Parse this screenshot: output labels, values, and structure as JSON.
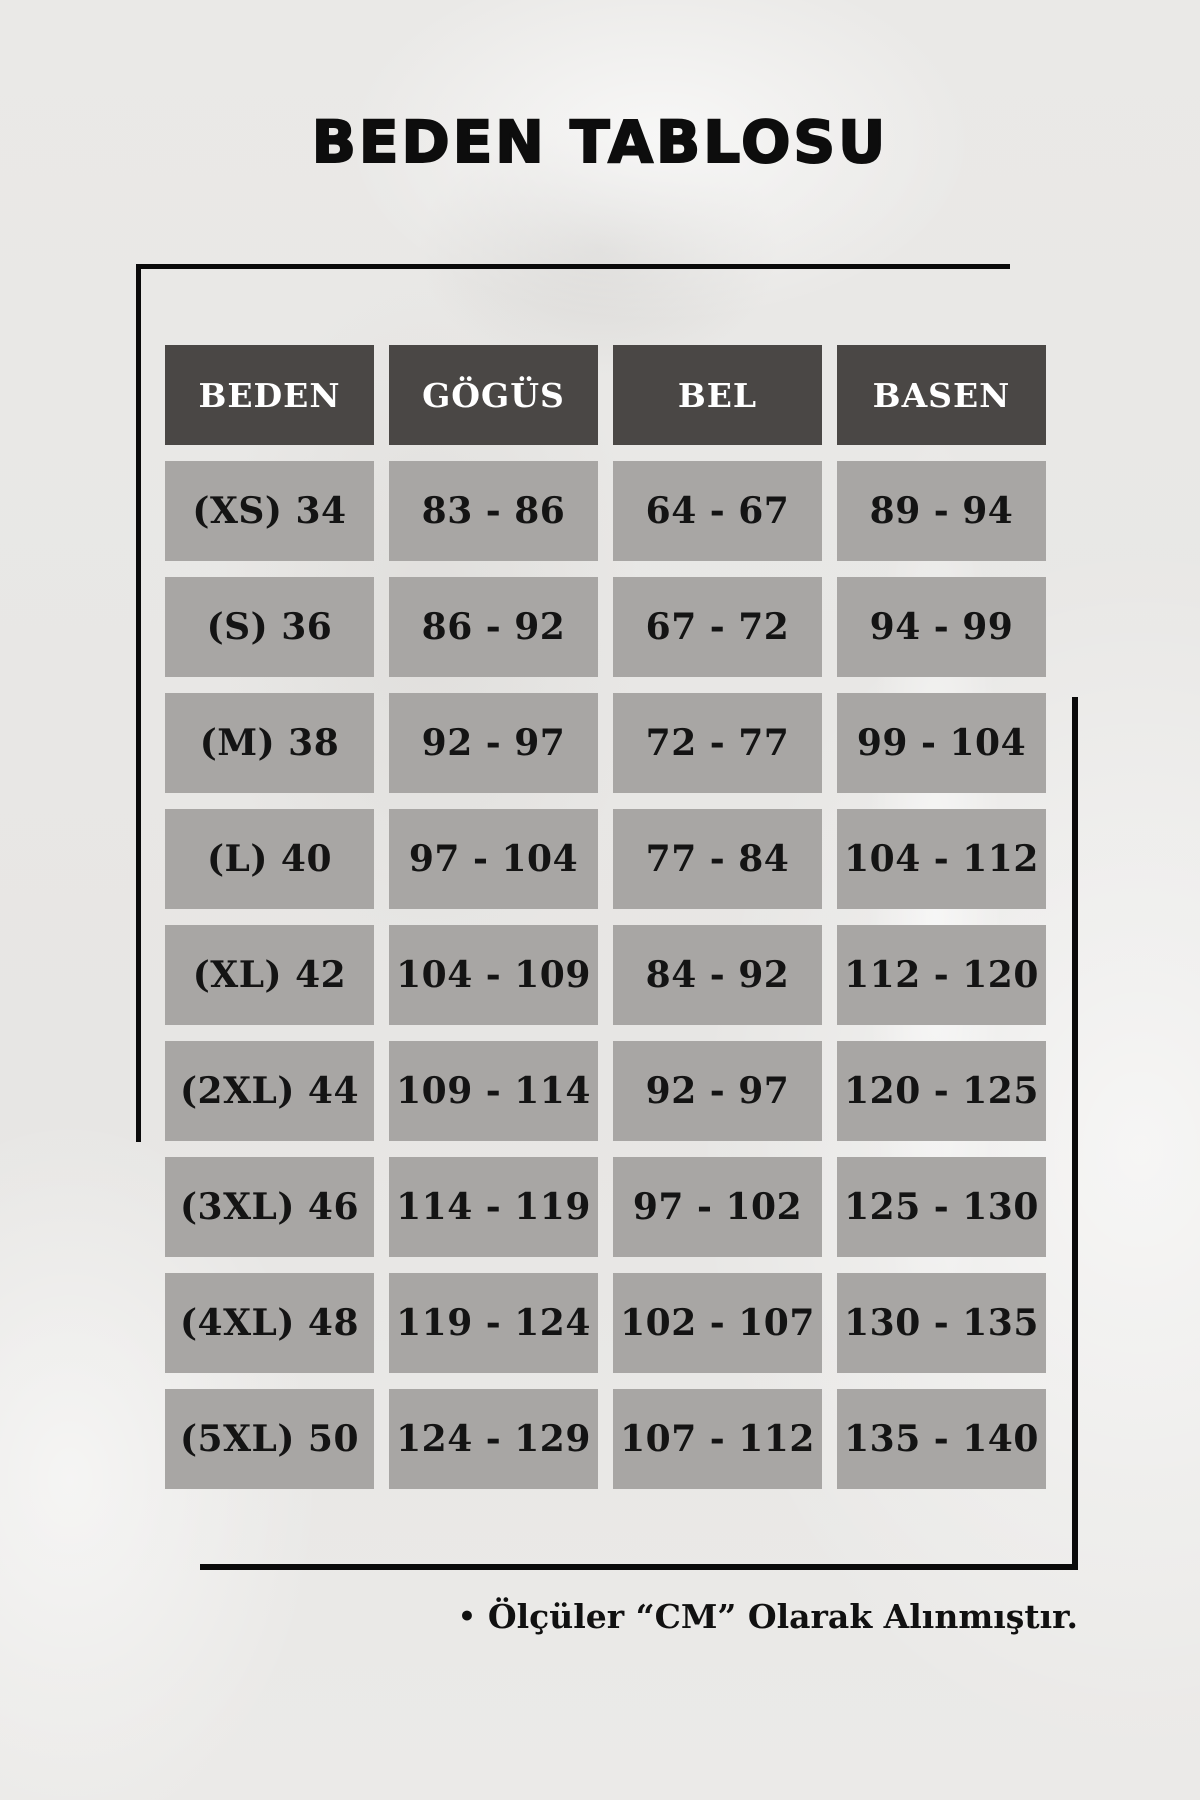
{
  "page": {
    "title": "BEDEN TABLOSU",
    "footer_bullet": "•",
    "footer_note": "Ölçüler “CM” Olarak Alınmıştır."
  },
  "chart_data": {
    "type": "table",
    "title": "BEDEN TABLOSU",
    "columns": [
      "BEDEN",
      "GÖGÜS",
      "BEL",
      "BASEN"
    ],
    "rows": [
      [
        "(XS) 34",
        "83 - 86",
        "64 - 67",
        "89 - 94"
      ],
      [
        "(S) 36",
        "86 - 92",
        "67 - 72",
        "94 - 99"
      ],
      [
        "(M) 38",
        "92 - 97",
        "72 - 77",
        "99 - 104"
      ],
      [
        "(L) 40",
        "97 - 104",
        "77 - 84",
        "104 - 112"
      ],
      [
        "(XL) 42",
        "104 - 109",
        "84 - 92",
        "112 - 120"
      ],
      [
        "(2XL) 44",
        "109 - 114",
        "92 - 97",
        "120 - 125"
      ],
      [
        "(3XL) 46",
        "114 - 119",
        "97 - 102",
        "125 - 130"
      ],
      [
        "(4XL) 48",
        "119 - 124",
        "102 - 107",
        "130 - 135"
      ],
      [
        "(5XL) 50",
        "124 - 129",
        "107 - 112",
        "135 - 140"
      ]
    ],
    "footnote": "Ölçüler “CM” Olarak Alınmıştır.",
    "units": "cm",
    "layout": {
      "legend": "none",
      "grid": "gapped-cells"
    }
  },
  "colors": {
    "page_bg": "#e9e8e6",
    "header_bg": "#4a4745",
    "header_text": "#ffffff",
    "cell_bg": "#a8a6a4",
    "cell_text": "#141414",
    "frame_color": "#0a0a0a",
    "title_color": "#0d0d0d"
  }
}
